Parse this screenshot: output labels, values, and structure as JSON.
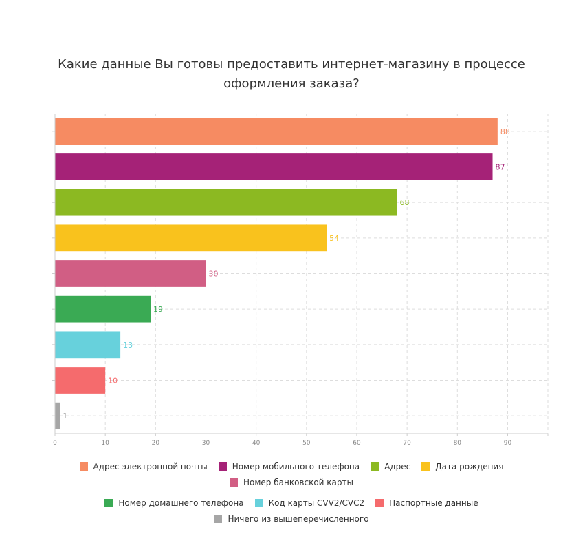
{
  "chart_data": {
    "type": "bar",
    "orientation": "horizontal",
    "title": "Какие данные Вы готовы предоставить интернет-магазину в процессе оформления заказа?",
    "categories": [
      "Адрес электронной почты",
      "Номер мобильного телефона",
      "Адрес",
      "Дата рождения",
      "Номер банковской карты",
      "Номер домашнего телефона",
      "Код карты CVV2/CVC2",
      "Паспортные данные",
      "Ничего из вышеперечисленного"
    ],
    "values": [
      88,
      87,
      68,
      54,
      30,
      19,
      13,
      10,
      1
    ],
    "colors": [
      "#f68b62",
      "#a52277",
      "#8cb922",
      "#f9c21d",
      "#d15e84",
      "#3aaa54",
      "#67d1dc",
      "#f56b6d",
      "#a6a6a6"
    ],
    "label_colors": [
      "#f68b62",
      "#a52277",
      "#8cb922",
      "#f9c21d",
      "#d15e84",
      "#3aaa54",
      "#67d1dc",
      "#f56b6d",
      "#a6a6a6"
    ],
    "xlim": [
      0,
      98
    ],
    "xticks": [
      0,
      10,
      20,
      30,
      40,
      50,
      60,
      70,
      80,
      90
    ],
    "grid": true,
    "legend_position": "bottom"
  }
}
